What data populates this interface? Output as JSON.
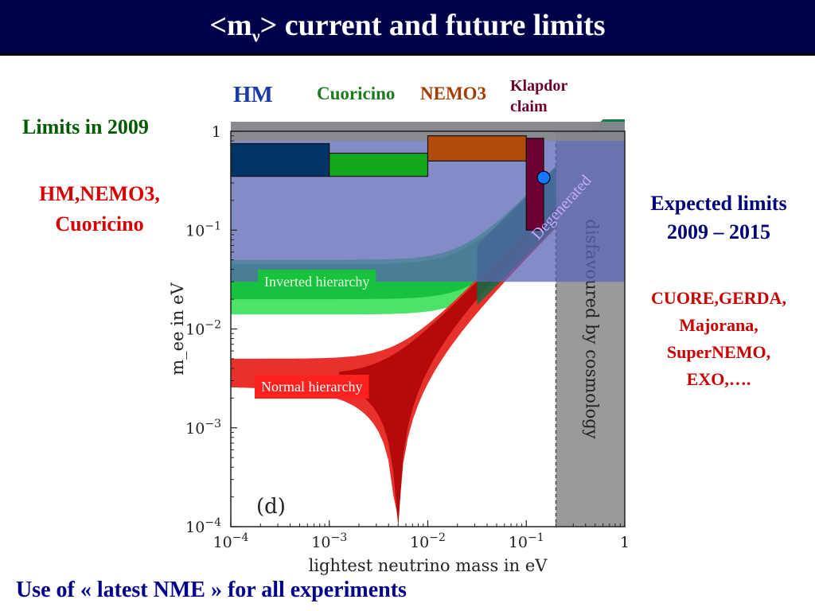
{
  "title": {
    "main": "<m",
    "sub": "ν",
    "rest": "> current and future limits"
  },
  "labels": {
    "hm": "HM",
    "cuoricino": "Cuoricino",
    "nemo3": "NEMO3",
    "klapdor_line1": "Klapdor",
    "klapdor_line2": "claim",
    "limits_2009": "Limits in 2009",
    "current_list_line1": "HM,NEMO3,",
    "current_list_line2": "Cuoricino",
    "expected_line1": "Expected limits",
    "expected_line2": "2009 – 2015",
    "future_line1": "CUORE,GERDA,",
    "future_line2": "Majorana,",
    "future_line3": "SuperNEMO,",
    "future_line4": "EXO,….",
    "footer": "Use of « latest NME » for all experiments"
  },
  "colors": {
    "hm": "#003366",
    "cuoricino": "#11a61c",
    "nemo3": "#b24a0c",
    "klapdor": "#6c0032",
    "future_band": "#5b66b4",
    "inverted": "#19c23e",
    "normal": "#e8302c",
    "degenerated": "#0e6e44",
    "cosmology": "#9a9a9a"
  },
  "chart_data": {
    "type": "area",
    "xlabel": "lightest neutrino mass in eV",
    "ylabel": "m_ee in eV",
    "x_scale": "log",
    "y_scale": "log",
    "xlim": [
      0.0001,
      1
    ],
    "ylim": [
      0.0001,
      1
    ],
    "x_ticks": [
      {
        "base": "10",
        "exp": "−4"
      },
      {
        "base": "10",
        "exp": "−3"
      },
      {
        "base": "10",
        "exp": "−2"
      },
      {
        "base": "10",
        "exp": "−1"
      },
      {
        "base": "1",
        "exp": ""
      }
    ],
    "y_ticks": [
      {
        "base": "1",
        "exp": ""
      },
      {
        "base": "10",
        "exp": "−1"
      },
      {
        "base": "10",
        "exp": "−2"
      },
      {
        "base": "10",
        "exp": "−3"
      },
      {
        "base": "10",
        "exp": "−4"
      }
    ],
    "region_labels": {
      "inverted": "Inverted hierarchy",
      "normal": "Normal hierarchy",
      "degenerated": "Degenerated",
      "cosmology": "disfavoured by cosmology",
      "panel": "(d)"
    },
    "cosmology_bound_x": 0.2,
    "future_sensitivity_y": 0.03,
    "current_limits": [
      {
        "name": "HM",
        "x_min": 0.0001,
        "x_max": 0.001,
        "y_min": 0.35,
        "y_max": 0.75
      },
      {
        "name": "Cuoricino",
        "x_min": 0.001,
        "x_max": 0.01,
        "y_min": 0.35,
        "y_max": 0.6
      },
      {
        "name": "NEMO3",
        "x_min": 0.01,
        "x_max": 0.1,
        "y_min": 0.5,
        "y_max": 0.9
      },
      {
        "name": "Klapdor claim",
        "x_min": 0.1,
        "x_max": 0.15,
        "y_min": 0.1,
        "y_max": 0.85,
        "point_x": 0.15,
        "point_y": 0.34
      }
    ]
  }
}
